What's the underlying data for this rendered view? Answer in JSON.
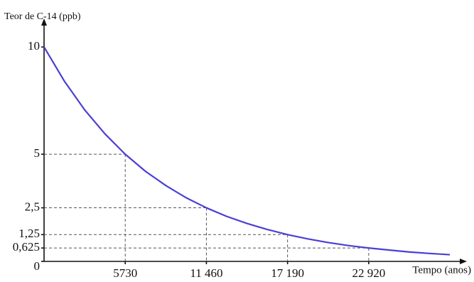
{
  "chart_data": {
    "type": "line",
    "y_label": "Teor de C-14 (ppb)",
    "x_label": "Tempo (anos)",
    "x": [
      0,
      1432.5,
      2865,
      4297.5,
      5730,
      7162.5,
      8595,
      10027.5,
      11460,
      12892.5,
      14325,
      15757.5,
      17190,
      18622.5,
      20055,
      21487.5,
      22920,
      24352.5,
      25785,
      27217.5,
      28650
    ],
    "series": [
      {
        "color": "#4a3fd4",
        "values": [
          10,
          8.41,
          7.07,
          5.95,
          5,
          4.2,
          3.54,
          2.97,
          2.5,
          2.1,
          1.77,
          1.49,
          1.25,
          1.05,
          0.88,
          0.74,
          0.625,
          0.53,
          0.44,
          0.37,
          0.3125
        ]
      }
    ],
    "xlim": [
      0,
      29500
    ],
    "ylim": [
      0,
      11.2
    ],
    "xticks": [
      {
        "value": 5730,
        "label": "5730"
      },
      {
        "value": 11460,
        "label": "11 460"
      },
      {
        "value": 17190,
        "label": "17 190"
      },
      {
        "value": 22920,
        "label": "22 920"
      }
    ],
    "yticks": [
      0,
      10,
      5,
      {
        "value": 2.5,
        "label": "2,5"
      },
      {
        "value": 1.25,
        "label": "1,25"
      },
      {
        "value": 0.625,
        "label": "0,625"
      }
    ],
    "dashed_guides": true
  }
}
